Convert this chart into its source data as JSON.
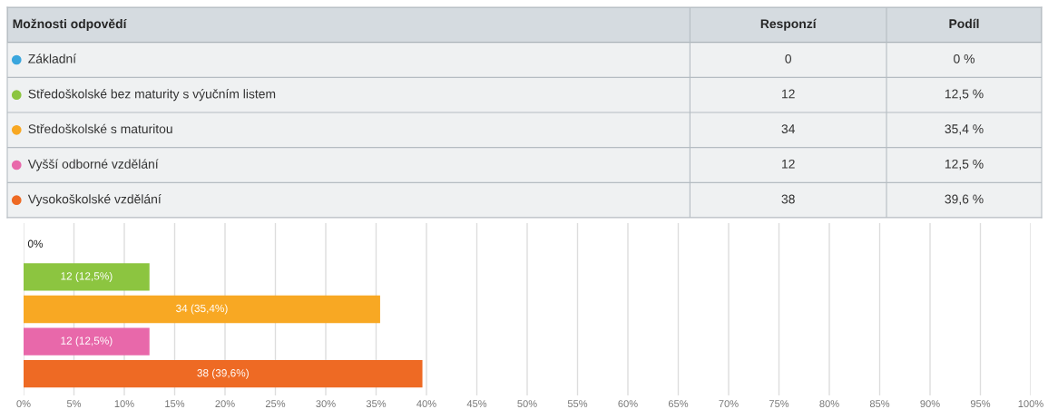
{
  "chart_data": [
    {
      "type": "other",
      "annotations": [
        "Možnosti odpovědí"
      ],
      "categories": [
        "Základní",
        "Středoškolské bez maturity s výučním listem",
        "Středoškolské s maturitou",
        "Vyšší odborné vzdělání",
        "Vysokoškolské vzdělání"
      ],
      "colors": [
        "#3aa6dd",
        "#8cc540",
        "#f8a823",
        "#e868aa",
        "#ee6a24"
      ],
      "series": [
        {
          "name": "Responzí",
          "values": [
            0,
            12,
            34,
            12,
            38
          ]
        },
        {
          "name": "Podíl",
          "values": [
            0,
            12.5,
            35.4,
            12.5,
            39.6
          ],
          "value_labels": [
            "0 %",
            "12,5 %",
            "35,4 %",
            "12,5 %",
            "39,6 %"
          ]
        }
      ],
      "data_labels": true
    },
    {
      "type": "bar",
      "orientation": "horizontal",
      "categories": [
        null,
        null,
        null,
        null,
        null
      ],
      "values": [
        0,
        12.5,
        35.4,
        12.5,
        39.6
      ],
      "colors": [
        "#3aa6dd",
        "#8cc540",
        "#f8a823",
        "#e868aa",
        "#ee6a24"
      ],
      "value_labels": [
        "0%",
        "12 (12,5%)",
        "34 (35,4%)",
        "12 (12,5%)",
        "38 (39,6%)"
      ],
      "xlim": [
        0,
        100
      ],
      "xticks": [
        {
          "value": 0,
          "label": "0%"
        },
        {
          "value": 5,
          "label": "5%"
        },
        {
          "value": 10,
          "label": "10%"
        },
        {
          "value": 15,
          "label": "15%"
        },
        {
          "value": 20,
          "label": "20%"
        },
        {
          "value": 25,
          "label": "25%"
        },
        {
          "value": 30,
          "label": "30%"
        },
        {
          "value": 35,
          "label": "35%"
        },
        {
          "value": 40,
          "label": "40%"
        },
        {
          "value": 45,
          "label": "45%"
        },
        {
          "value": 50,
          "label": "50%"
        },
        {
          "value": 55,
          "label": "55%"
        },
        {
          "value": 60,
          "label": "60%"
        },
        {
          "value": 65,
          "label": "65%"
        },
        {
          "value": 70,
          "label": "70%"
        },
        {
          "value": 75,
          "label": "75%"
        },
        {
          "value": 80,
          "label": "80%"
        },
        {
          "value": 85,
          "label": "85%"
        },
        {
          "value": 90,
          "label": "90%"
        },
        {
          "value": 95,
          "label": "95%"
        },
        {
          "value": 100,
          "label": "100%"
        }
      ],
      "grid": "x",
      "tick_labels": "x"
    }
  ]
}
